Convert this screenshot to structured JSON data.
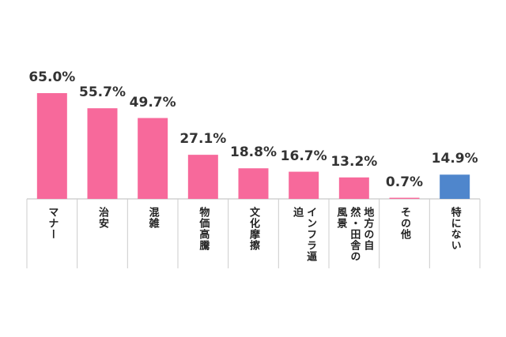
{
  "chart_data": {
    "type": "bar",
    "categories": [
      "マナー",
      "治安",
      "混雑",
      "物価高騰",
      "文化摩擦",
      "インフラ逼迫",
      "地方の自然・田舎の風景",
      "その他",
      "特にない"
    ],
    "values": [
      65.0,
      55.7,
      49.7,
      27.1,
      18.8,
      16.7,
      13.2,
      0.7,
      14.9
    ],
    "value_labels": [
      "65.0%",
      "55.7%",
      "49.7%",
      "27.1%",
      "18.8%",
      "16.7%",
      "13.2%",
      "0.7%",
      "14.9%"
    ],
    "colors": [
      "#f7699b",
      "#f7699b",
      "#f7699b",
      "#f7699b",
      "#f7699b",
      "#f7699b",
      "#f7699b",
      "#f7699b",
      "#4f86cc"
    ]
  }
}
